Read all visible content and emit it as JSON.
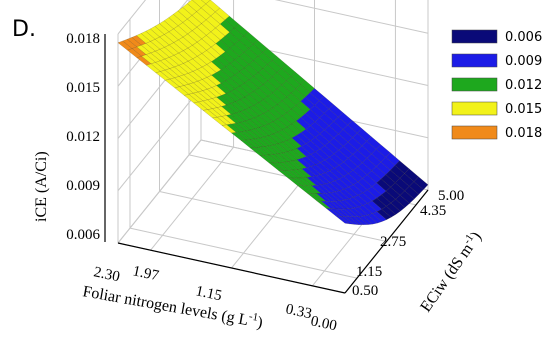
{
  "panel_label": "D.",
  "chart_data": {
    "type": "surface3d",
    "x_axis": {
      "label": "Foliar nitrogen levels (g L",
      "label_sup": "-1",
      "label_end": ")",
      "ticks": [
        "2.30",
        "1.97",
        "1.15",
        "0.33",
        "0.00"
      ],
      "tick_values": [
        2.3,
        1.97,
        1.15,
        0.33,
        0.0
      ],
      "range": [
        0.0,
        2.3
      ]
    },
    "y_axis": {
      "label": "ECiw (dS m",
      "label_sup": "-1",
      "label_end": ")",
      "ticks": [
        "5.00",
        "4.35",
        "2.75",
        "1.15",
        "0.50"
      ],
      "tick_values": [
        5.0,
        4.35,
        2.75,
        1.15,
        0.5
      ],
      "range": [
        0.5,
        5.0
      ]
    },
    "z_axis": {
      "label": "iCE (A/Ci)",
      "ticks": [
        "0.006",
        "0.009",
        "0.012",
        "0.015",
        "0.018"
      ],
      "tick_values": [
        0.006,
        0.009,
        0.012,
        0.015,
        0.018
      ],
      "range": [
        0.006,
        0.018
      ]
    },
    "surface_corners": [
      {
        "n": 2.3,
        "ec": 0.5,
        "ice": 0.0175
      },
      {
        "n": 2.3,
        "ec": 5.0,
        "ice": 0.0145
      },
      {
        "n": 0.0,
        "ec": 0.5,
        "ice": 0.01
      },
      {
        "n": 0.0,
        "ec": 5.0,
        "ice": 0.0063
      }
    ],
    "legend": {
      "placement": "top-right",
      "entries": [
        {
          "label": "0.006",
          "color": "#0a0a78"
        },
        {
          "label": "0.009",
          "color": "#1c1ce6"
        },
        {
          "label": "0.012",
          "color": "#1ea81e"
        },
        {
          "label": "0.015",
          "color": "#f2f21a"
        },
        {
          "label": "0.018",
          "color": "#f08a1a"
        }
      ]
    }
  }
}
